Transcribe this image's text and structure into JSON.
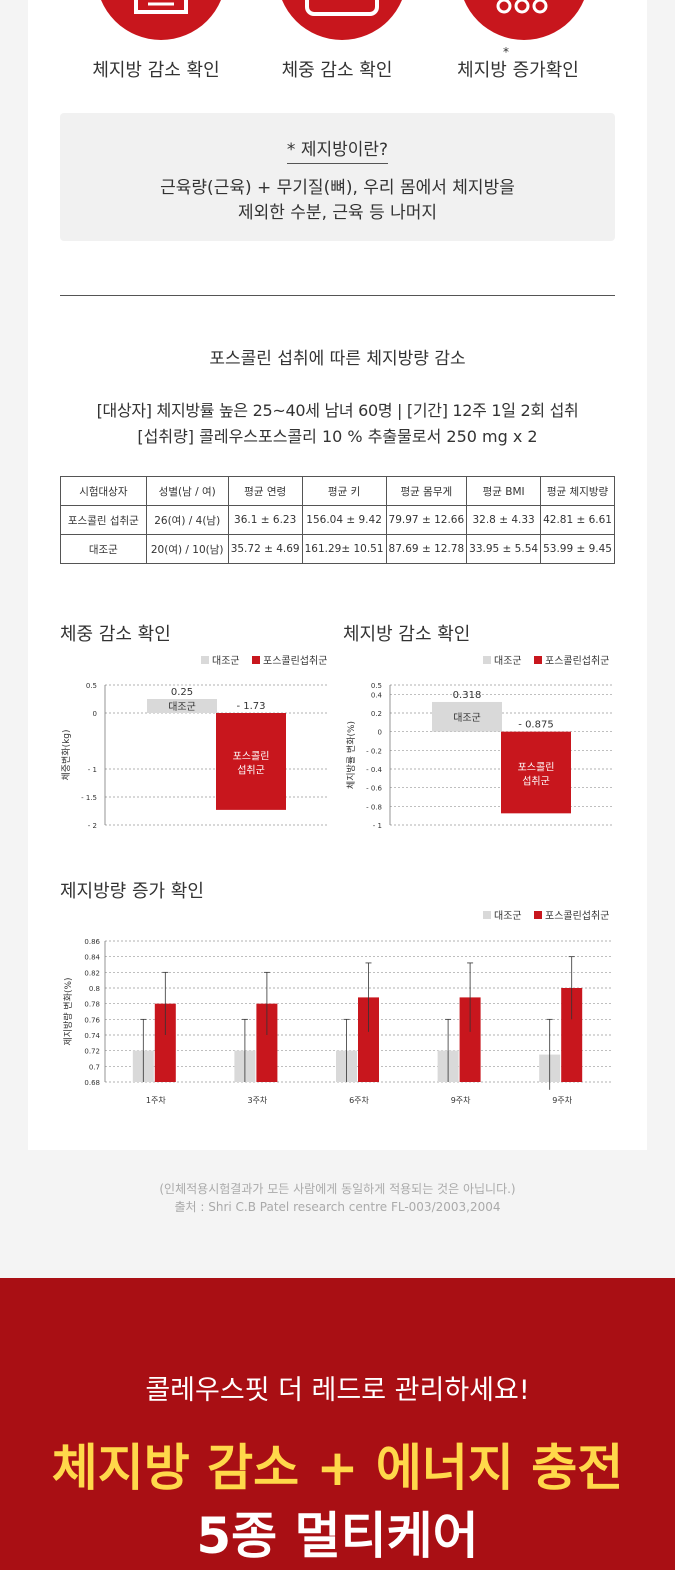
{
  "icons": [
    {
      "label": "체지방 감소 확인",
      "icon": "scale-icon"
    },
    {
      "label": "체중 감소 확인",
      "icon": "weight-scale-icon"
    },
    {
      "label": "체지방 증가확인",
      "star": "*",
      "icon": "fat-cells-icon"
    }
  ],
  "definition": {
    "title": "* 제지방이란?",
    "line1": "근육량(근육) + 무기질(뼈), 우리 몸에서 체지방을",
    "line2": "제외한 수분, 근육 등 나머지"
  },
  "study": {
    "heading": "포스콜린 섭취에 따른 체지방량 감소",
    "line1": "[대상자] 체지방률 높은 25~40세 남녀 60명 | [기간] 12주 1일 2회 섭취",
    "line2": "[섭취량] 콜레우스포스콜리 10 % 추출물로서 250 mg x 2"
  },
  "table": {
    "headers": [
      "시험대상자",
      "성별(남 / 여)",
      "평균 연령",
      "평균 키",
      "평균 몸무게",
      "평균 BMI",
      "평균 체지방량"
    ],
    "rows": [
      [
        "포스콜린 섭취군",
        "26(여) / 4(남)",
        "36.1 ± 6.23",
        "156.04 ± 9.42",
        "79.97 ± 12.66",
        "32.8 ± 4.33",
        "42.81 ± 6.61"
      ],
      [
        "대조군",
        "20(여) / 10(남)",
        "35.72 ± 4.69",
        "161.29± 10.51",
        "87.69 ± 12.78",
        "33.95 ± 5.54",
        "53.99 ± 9.45"
      ]
    ]
  },
  "colors": {
    "control": "#d9d9d9",
    "treatment": "#c8161d",
    "banner": "#a90f14",
    "highlight": "#ffd84a"
  },
  "chart_data": [
    {
      "type": "bar",
      "title": "체중 감소 확인",
      "ylabel": "체중변화(kg)",
      "legend": [
        "대조군",
        "포스콜린섭취군"
      ],
      "ylim": [
        -2,
        0.5
      ],
      "yticks": [
        "0.5",
        "0",
        "- 1",
        "- 1.5",
        "- 2"
      ],
      "ytick_values": [
        0.5,
        0,
        -1,
        -1.5,
        -2
      ],
      "categories": [
        "대조군",
        "포스콜린섭취군"
      ],
      "values": [
        0.25,
        -1.73
      ],
      "value_labels": [
        "0.25",
        "- 1.73"
      ],
      "bar_labels": [
        "대조군",
        "포스콜린 섭취군"
      ]
    },
    {
      "type": "bar",
      "title": "체지방 감소 확인",
      "ylabel": "체지방률 변화(%)",
      "legend": [
        "대조군",
        "포스콜린섭취군"
      ],
      "ylim": [
        -1,
        0.5
      ],
      "yticks": [
        "0.5",
        "0.4",
        "0.2",
        "0",
        "- 0.2",
        "- 0.4",
        "- 0.6",
        "- 0.8",
        "- 1"
      ],
      "ytick_values": [
        0.5,
        0.4,
        0.2,
        0,
        -0.2,
        -0.4,
        -0.6,
        -0.8,
        -1
      ],
      "categories": [
        "대조군",
        "포스콜린섭취군"
      ],
      "values": [
        0.318,
        -0.875
      ],
      "value_labels": [
        "0.318",
        "- 0.875"
      ],
      "bar_labels": [
        "대조군",
        "포스콜린 섭취군"
      ]
    },
    {
      "type": "bar",
      "title": "제지방량 증가 확인",
      "ylabel": "제지방량 변화(%)",
      "legend": [
        "대조군",
        "포스콜린섭취군"
      ],
      "ylim": [
        0.68,
        0.86
      ],
      "yticks": [
        "0.86",
        "0.84",
        "0.82",
        "0.8",
        "0.78",
        "0.76",
        "0.74",
        "0.72",
        "0.7",
        "0.68"
      ],
      "ytick_values": [
        0.86,
        0.84,
        0.82,
        0.8,
        0.78,
        0.76,
        0.74,
        0.72,
        0.7,
        0.68
      ],
      "categories": [
        "1주차",
        "3주차",
        "6주차",
        "9주차",
        "9주차"
      ],
      "series": [
        {
          "name": "대조군",
          "values": [
            0.72,
            0.72,
            0.72,
            0.72,
            0.715
          ],
          "error": [
            0.04,
            0.04,
            0.04,
            0.04,
            0.045
          ]
        },
        {
          "name": "포스콜린섭취군",
          "values": [
            0.78,
            0.78,
            0.788,
            0.788,
            0.8
          ],
          "error": [
            0.04,
            0.04,
            0.044,
            0.044,
            0.04
          ]
        }
      ]
    }
  ],
  "footnote": {
    "line1": "(인체적용시험결과가 모든 사람에게 동일하게 적용되는 것은 아닙니다.)",
    "line2": "출처 : Shri C.B Patel research centre FL-003/2003,2004"
  },
  "banner": {
    "subtitle": "콜레우스핏 더 레드로 관리하세요!",
    "headline1": "체지방 감소 + 에너지 충전",
    "headline2": "5종 멀티케어"
  }
}
